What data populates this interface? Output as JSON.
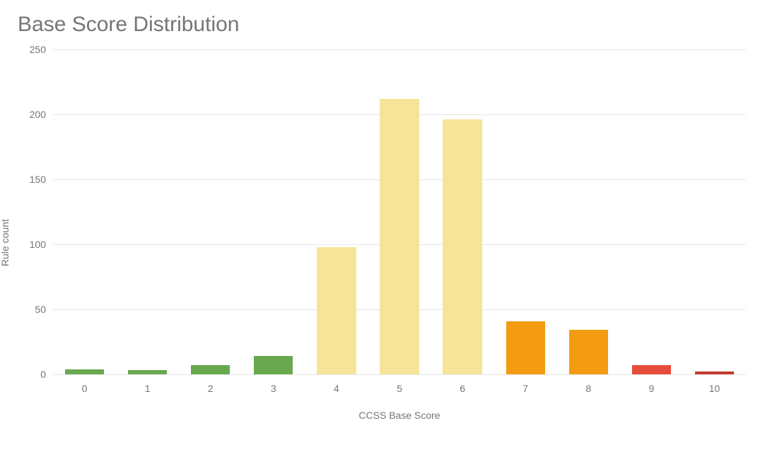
{
  "chart": {
    "type": "bar",
    "title": "Base Score Distribution",
    "title_fontsize": 30,
    "title_color": "#757575",
    "ylabel": "Rule count",
    "xlabel": "CCSS Base Score",
    "label_fontsize": 14,
    "label_color": "#757575",
    "tick_fontsize": 14,
    "tick_color": "#757575",
    "ylim": [
      0,
      250
    ],
    "yticks": [
      0,
      50,
      100,
      150,
      200,
      250
    ],
    "categories": [
      "0",
      "1",
      "2",
      "3",
      "4",
      "5",
      "6",
      "7",
      "8",
      "9",
      "10"
    ],
    "values": [
      4,
      3,
      7,
      14,
      98,
      212,
      196,
      41,
      34,
      7,
      2
    ],
    "bar_colors": [
      "#6aa84f",
      "#6aa84f",
      "#6aa84f",
      "#6aa84f",
      "#f6e599",
      "#f6e599",
      "#f6e599",
      "#f39c11",
      "#f39c11",
      "#e74c3c",
      "#c0392b"
    ],
    "bar_width": 0.62,
    "background_color": "#ffffff",
    "grid_color": "#e6e6e6"
  }
}
